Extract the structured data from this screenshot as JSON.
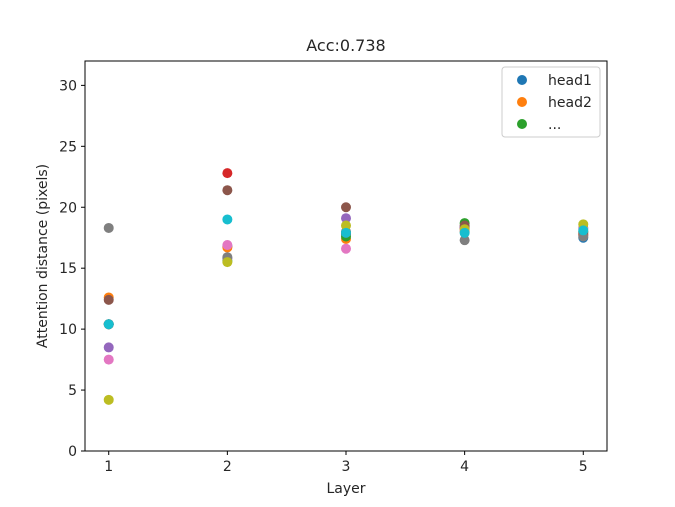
{
  "chart_data": {
    "type": "scatter",
    "title": "Acc:0.738",
    "xlabel": "Layer",
    "ylabel": "Attention distance (pixels)",
    "xlim": [
      0.8,
      5.2
    ],
    "ylim": [
      0,
      32
    ],
    "xticks": [
      "1",
      "2",
      "3",
      "4",
      "5"
    ],
    "yticks": [
      "0",
      "5",
      "10",
      "15",
      "20",
      "25",
      "30"
    ],
    "grid": false,
    "legend_position": "top-right",
    "legend": [
      "head1",
      "head2",
      "..."
    ],
    "series": [
      {
        "name": "head1",
        "color": "#1f77b4",
        "points": [
          [
            1,
            10.4
          ],
          [
            2,
            16.8
          ],
          [
            3,
            17.8
          ],
          [
            4,
            18.3
          ],
          [
            5,
            17.5
          ]
        ]
      },
      {
        "name": "head2",
        "color": "#ff7f0e",
        "points": [
          [
            1,
            12.6
          ],
          [
            2,
            16.7
          ],
          [
            3,
            17.4
          ],
          [
            4,
            18.0
          ],
          [
            5,
            17.8
          ]
        ]
      },
      {
        "name": "...",
        "color": "#2ca02c",
        "points": [
          [
            1,
            10.4
          ],
          [
            2,
            15.6
          ],
          [
            3,
            17.6
          ],
          [
            4,
            18.7
          ],
          [
            5,
            18.0
          ]
        ]
      },
      {
        "color": "#d62728",
        "points": [
          [
            1,
            10.4
          ],
          [
            2,
            22.8
          ],
          [
            3,
            17.9
          ],
          [
            4,
            18.3
          ],
          [
            5,
            17.7
          ]
        ]
      },
      {
        "color": "#9467bd",
        "points": [
          [
            1,
            8.5
          ],
          [
            2,
            15.8
          ],
          [
            3,
            19.1
          ],
          [
            4,
            18.4
          ],
          [
            5,
            18.3
          ]
        ]
      },
      {
        "color": "#8c564b",
        "points": [
          [
            1,
            12.4
          ],
          [
            2,
            21.4
          ],
          [
            3,
            20.0
          ],
          [
            4,
            18.5
          ],
          [
            5,
            17.9
          ]
        ]
      },
      {
        "color": "#e377c2",
        "points": [
          [
            1,
            7.5
          ],
          [
            2,
            16.9
          ],
          [
            3,
            16.6
          ],
          [
            4,
            18.1
          ],
          [
            5,
            18.2
          ]
        ]
      },
      {
        "color": "#7f7f7f",
        "points": [
          [
            1,
            18.3
          ],
          [
            2,
            15.9
          ],
          [
            3,
            18.0
          ],
          [
            4,
            17.3
          ],
          [
            5,
            17.6
          ]
        ]
      },
      {
        "color": "#bcbd22",
        "points": [
          [
            1,
            4.2
          ],
          [
            2,
            15.5
          ],
          [
            3,
            18.5
          ],
          [
            4,
            18.2
          ],
          [
            5,
            18.6
          ]
        ]
      },
      {
        "color": "#17becf",
        "points": [
          [
            1,
            10.4
          ],
          [
            2,
            19.0
          ],
          [
            3,
            17.9
          ],
          [
            4,
            17.9
          ],
          [
            5,
            18.1
          ]
        ]
      }
    ]
  }
}
